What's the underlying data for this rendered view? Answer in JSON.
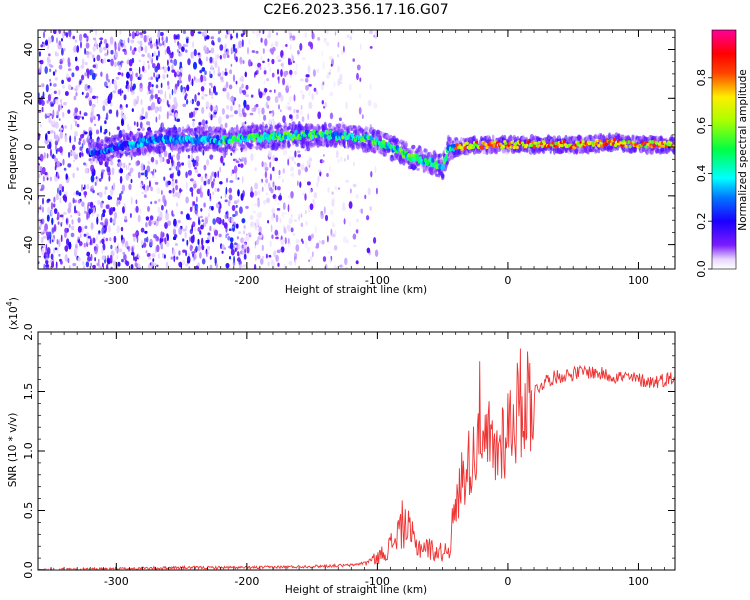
{
  "figure_title": "C2E6.2023.356.17.16.G07",
  "chart_data": [
    {
      "type": "heatmap",
      "title": "",
      "xlabel": "Height of straight line (km)",
      "ylabel": "Frequency (Hz)",
      "xlim": [
        -360,
        128
      ],
      "ylim": [
        -50,
        48
      ],
      "x_ticks": [
        -300,
        -200,
        -100,
        0,
        100
      ],
      "x_tick_labels": [
        "-300",
        "-200",
        "-100",
        "0",
        "100"
      ],
      "y_ticks": [
        -40,
        -20,
        0,
        20,
        40
      ],
      "y_tick_labels": [
        "-40",
        "-20",
        "0",
        "20",
        "40"
      ],
      "colorbar": {
        "label": "Normalized spectral amplitude",
        "range": [
          0,
          1
        ],
        "ticks": [
          0.0,
          0.2,
          0.4,
          0.6,
          0.8
        ],
        "tick_labels": [
          "0.0",
          "0.2",
          "0.4",
          "0.6",
          "0.8"
        ],
        "colormap": [
          "#ffffff",
          "#5500ff",
          "#0000ff",
          "#00ffff",
          "#00ff00",
          "#ffff00",
          "#ff0000",
          "#ff0099"
        ]
      },
      "signal_ridge": {
        "x": [
          -315,
          -300,
          -280,
          -260,
          -240,
          -220,
          -200,
          -180,
          -160,
          -140,
          -120,
          -105,
          -90,
          -75,
          -60,
          -50,
          -45,
          -40,
          -20,
          0,
          20,
          40,
          60,
          80,
          100,
          120
        ],
        "y": [
          -2,
          0,
          2,
          3,
          3,
          3,
          4,
          4,
          5,
          5,
          4,
          3,
          0,
          -4,
          -6,
          -8,
          0,
          0,
          1,
          1,
          1,
          1,
          1,
          2,
          1,
          1
        ]
      },
      "grid": false
    },
    {
      "type": "line",
      "title": "",
      "xlabel": "Height of straight line (km)",
      "ylabel": "SNR (10 * v/v)",
      "y_multiplier": "(x10",
      "y_multiplier_exp": "4",
      "y_multiplier_close": ")",
      "xlim": [
        -360,
        128
      ],
      "ylim": [
        0,
        2.0
      ],
      "x_ticks": [
        -300,
        -200,
        -100,
        0,
        100
      ],
      "x_tick_labels": [
        "-300",
        "-200",
        "-100",
        "0",
        "100"
      ],
      "y_ticks": [
        0.0,
        0.5,
        1.0,
        1.5,
        2.0
      ],
      "y_tick_labels": [
        "0.0",
        "0.5",
        "1.0",
        "1.5",
        "2.0"
      ],
      "series": [
        {
          "color": "#ee3333",
          "x": [
            -360,
            -300,
            -250,
            -200,
            -150,
            -120,
            -110,
            -100,
            -95,
            -90,
            -85,
            -80,
            -75,
            -70,
            -65,
            -60,
            -55,
            -50,
            -45,
            -40,
            -35,
            -30,
            -25,
            -22,
            -20,
            -15,
            -10,
            -5,
            0,
            5,
            10,
            15,
            20,
            25,
            30,
            40,
            50,
            60,
            70,
            80,
            90,
            100,
            110,
            120,
            128
          ],
          "y": [
            0.0,
            0.01,
            0.02,
            0.02,
            0.03,
            0.04,
            0.06,
            0.1,
            0.15,
            0.2,
            0.3,
            0.4,
            0.3,
            0.2,
            0.2,
            0.18,
            0.15,
            0.15,
            0.2,
            0.5,
            0.8,
            0.9,
            1.0,
            1.4,
            0.9,
            1.1,
            0.95,
            1.1,
            1.2,
            1.3,
            1.4,
            1.45,
            1.5,
            1.55,
            1.6,
            1.63,
            1.65,
            1.67,
            1.65,
            1.63,
            1.62,
            1.6,
            1.58,
            1.6,
            1.62
          ]
        }
      ],
      "grid": false
    }
  ]
}
